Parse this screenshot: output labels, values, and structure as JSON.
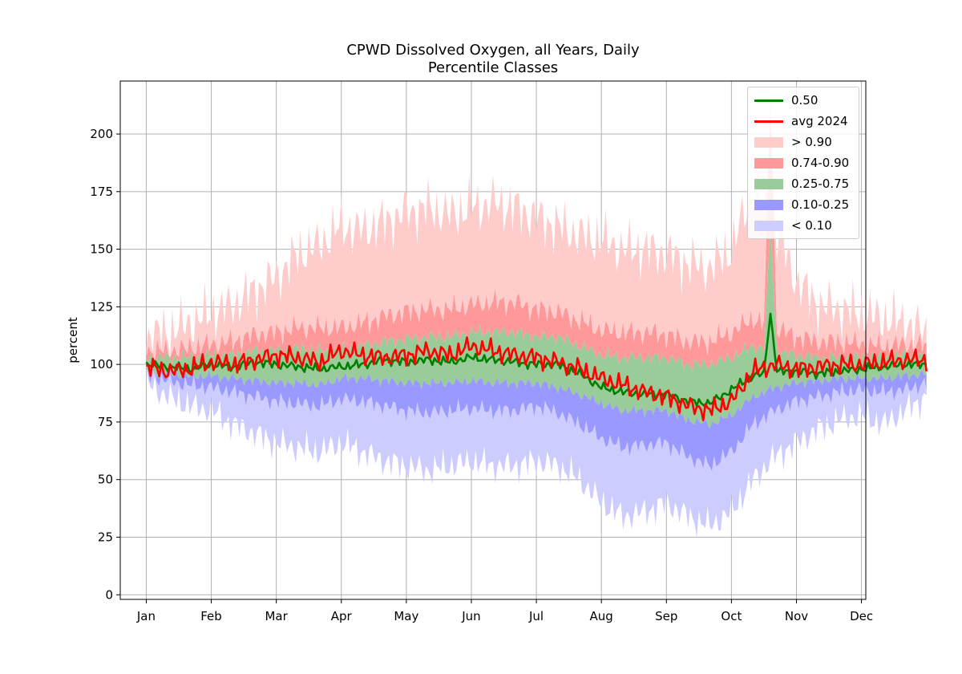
{
  "chart_data": {
    "type": "area",
    "title": "CPWD Dissolved Oxygen, all Years, Daily",
    "subtitle": "Percentile Classes",
    "xlabel": "",
    "ylabel": "percent",
    "ylim": [
      -2,
      223
    ],
    "xlim": [
      -12,
      332
    ],
    "grid": true,
    "legend_position": "top-right",
    "x_ticks": [
      {
        "label": "Jan",
        "day": 0
      },
      {
        "label": "Feb",
        "day": 30
      },
      {
        "label": "Mar",
        "day": 60
      },
      {
        "label": "Apr",
        "day": 90
      },
      {
        "label": "May",
        "day": 120
      },
      {
        "label": "Jun",
        "day": 150
      },
      {
        "label": "Jul",
        "day": 180
      },
      {
        "label": "Aug",
        "day": 210
      },
      {
        "label": "Sep",
        "day": 240
      },
      {
        "label": "Oct",
        "day": 270
      },
      {
        "label": "Nov",
        "day": 300
      },
      {
        "label": "Dec",
        "day": 330
      }
    ],
    "y_ticks": [
      0,
      25,
      50,
      75,
      100,
      125,
      150,
      175,
      200
    ],
    "colors": {
      "median": "#008000",
      "avg": "#ff0000",
      "p90_plus": "#ffcccc",
      "p74_90": "#ff9999",
      "p25_75": "#99cc99",
      "p10_25": "#9999ff",
      "p10_minus": "#ccccff"
    },
    "legend": [
      {
        "label": "0.50",
        "kind": "line",
        "color": "#008000"
      },
      {
        "label": "avg 2024",
        "kind": "line",
        "color": "#ff0000"
      },
      {
        "label": "> 0.90",
        "kind": "patch",
        "color": "#ffcccc"
      },
      {
        "label": "0.74-0.90",
        "kind": "patch",
        "color": "#ff9999"
      },
      {
        "label": "0.25-0.75",
        "kind": "patch",
        "color": "#99cc99"
      },
      {
        "label": "0.10-0.25",
        "kind": "patch",
        "color": "#9999ff"
      },
      {
        "label": "< 0.10",
        "kind": "patch",
        "color": "#ccccff"
      }
    ],
    "days": [
      0,
      10,
      20,
      30,
      40,
      50,
      60,
      70,
      80,
      90,
      100,
      110,
      120,
      130,
      140,
      150,
      160,
      170,
      180,
      190,
      200,
      210,
      220,
      230,
      240,
      250,
      260,
      270,
      280,
      290,
      300,
      310,
      320,
      330,
      340,
      350,
      360
    ],
    "series": [
      {
        "name": "< 0.10",
        "band": "min",
        "values": [
          92,
          86,
          82,
          80,
          74,
          70,
          66,
          64,
          62,
          66,
          62,
          58,
          56,
          54,
          56,
          58,
          56,
          56,
          58,
          56,
          50,
          40,
          34,
          36,
          40,
          34,
          30,
          36,
          50,
          60,
          66,
          72,
          76,
          78,
          74,
          80,
          86
        ]
      },
      {
        "name": "0.10-0.25",
        "band": "p10",
        "values": [
          95,
          93,
          91,
          90,
          88,
          86,
          84,
          83,
          82,
          85,
          84,
          82,
          80,
          79,
          80,
          81,
          80,
          80,
          82,
          79,
          74,
          68,
          64,
          65,
          66,
          60,
          56,
          62,
          74,
          80,
          84,
          86,
          88,
          89,
          88,
          89,
          92
        ]
      },
      {
        "name": "0.25-0.75",
        "band": "p25",
        "values": [
          97,
          96,
          95,
          95,
          94,
          93,
          92,
          92,
          91,
          94,
          94,
          93,
          92,
          92,
          92,
          93,
          92,
          92,
          92,
          90,
          87,
          83,
          80,
          80,
          80,
          76,
          74,
          78,
          86,
          90,
          92,
          93,
          94,
          94,
          94,
          95,
          96
        ]
      },
      {
        "name": "0.50",
        "values": [
          100,
          99,
          98,
          100,
          99,
          101,
          100,
          99,
          98,
          99,
          100,
          102,
          101,
          102,
          101,
          103,
          102,
          101,
          100,
          100,
          96,
          90,
          88,
          87,
          87,
          84,
          83,
          89,
          95,
          97,
          97,
          96,
          97,
          98,
          99,
          100,
          100
        ]
      },
      {
        "name": "0.74-0.90",
        "band": "p75",
        "values": [
          103,
          103,
          103,
          104,
          104,
          106,
          106,
          107,
          106,
          106,
          108,
          110,
          111,
          112,
          112,
          114,
          114,
          114,
          112,
          112,
          108,
          104,
          103,
          103,
          103,
          100,
          100,
          103,
          108,
          106,
          104,
          103,
          103,
          103,
          103,
          104,
          103
        ]
      },
      {
        "name": "> 0.90",
        "band": "p90",
        "values": [
          106,
          106,
          107,
          109,
          110,
          113,
          114,
          116,
          116,
          116,
          118,
          121,
          123,
          124,
          124,
          126,
          127,
          127,
          124,
          123,
          119,
          115,
          114,
          114,
          113,
          110,
          110,
          114,
          120,
          116,
          112,
          110,
          110,
          109,
          108,
          109,
          108
        ]
      },
      {
        "name": "max",
        "band": "max",
        "values": [
          112,
          114,
          118,
          122,
          126,
          132,
          138,
          148,
          152,
          160,
          158,
          162,
          166,
          168,
          165,
          168,
          170,
          168,
          164,
          160,
          156,
          154,
          150,
          150,
          148,
          144,
          142,
          150,
          176,
          160,
          136,
          126,
          124,
          122,
          120,
          118,
          114
        ]
      },
      {
        "name": "avg 2024",
        "values": [
          99,
          97,
          98,
          101,
          100,
          102,
          104,
          103,
          101,
          106,
          104,
          103,
          104,
          106,
          104,
          108,
          106,
          104,
          103,
          101,
          98,
          94,
          91,
          88,
          86,
          82,
          80,
          84,
          97,
          100,
          98,
          99,
          100,
          100,
          101,
          102,
          102
        ]
      }
    ],
    "spikes": [
      {
        "day": 288,
        "median": 122,
        "p75": 160,
        "p90": 212
      }
    ]
  }
}
